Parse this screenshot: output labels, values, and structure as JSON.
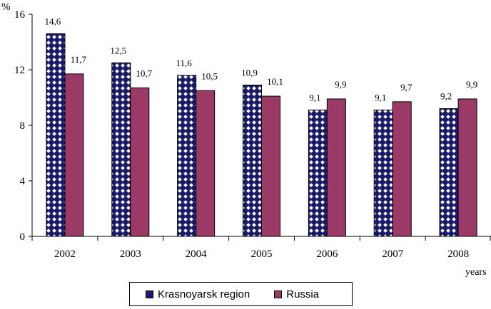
{
  "chart_data": {
    "type": "bar",
    "title": "",
    "ylabel": "%",
    "xlabel": "years",
    "ylim": [
      0,
      16
    ],
    "yticks": [
      "0",
      "4",
      "8",
      "12",
      "16"
    ],
    "categories": [
      "2002",
      "2003",
      "2004",
      "2005",
      "2006",
      "2007",
      "2008"
    ],
    "series": [
      {
        "name": "Krasnoyarsk region",
        "values": [
          14.6,
          12.5,
          11.6,
          10.9,
          9.1,
          9.1,
          9.2
        ],
        "labels": [
          "14,6",
          "12,5",
          "11,6",
          "10,9",
          "9,1",
          "9,1",
          "9,2"
        ],
        "color": "#1a1a6a",
        "pattern": "checkered"
      },
      {
        "name": "Russia",
        "values": [
          11.7,
          10.7,
          10.5,
          10.1,
          9.9,
          9.7,
          9.9
        ],
        "labels": [
          "11,7",
          "10,7",
          "10,5",
          "10,1",
          "9,9",
          "9,7",
          "9,9"
        ],
        "color": "#9b3a66",
        "pattern": "solid"
      }
    ],
    "legend": "bottom",
    "grid": false
  }
}
